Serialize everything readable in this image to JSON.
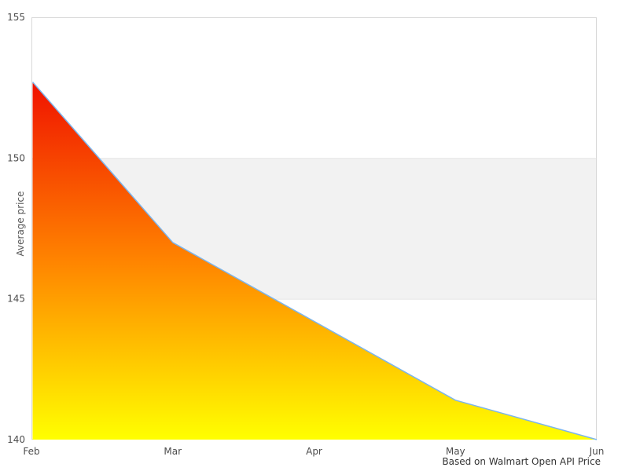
{
  "chart_data": {
    "type": "area",
    "categories": [
      "Feb",
      "Mar",
      "Apr",
      "May",
      "Jun"
    ],
    "values": [
      152.7,
      147.0,
      144.2,
      141.4,
      140.0
    ],
    "series_name": "Average price",
    "title": "",
    "xlabel": "",
    "ylabel": "Average price",
    "caption": "Based on Walmart Open API Price",
    "ylim": [
      140,
      155
    ],
    "yticks": [
      155,
      150,
      145,
      140
    ],
    "plot_band": {
      "from": 145,
      "to": 150,
      "color": "#f2f2f2",
      "edge_color": "#e4e4e4"
    },
    "line_color": "#7cb5ec",
    "fill_gradient": [
      "#f01200",
      "#ff8400",
      "#ffff00"
    ],
    "border_color": "#d8d8d8",
    "tick_label_color": "#4d4d4d",
    "grid": false,
    "legend": "none"
  }
}
